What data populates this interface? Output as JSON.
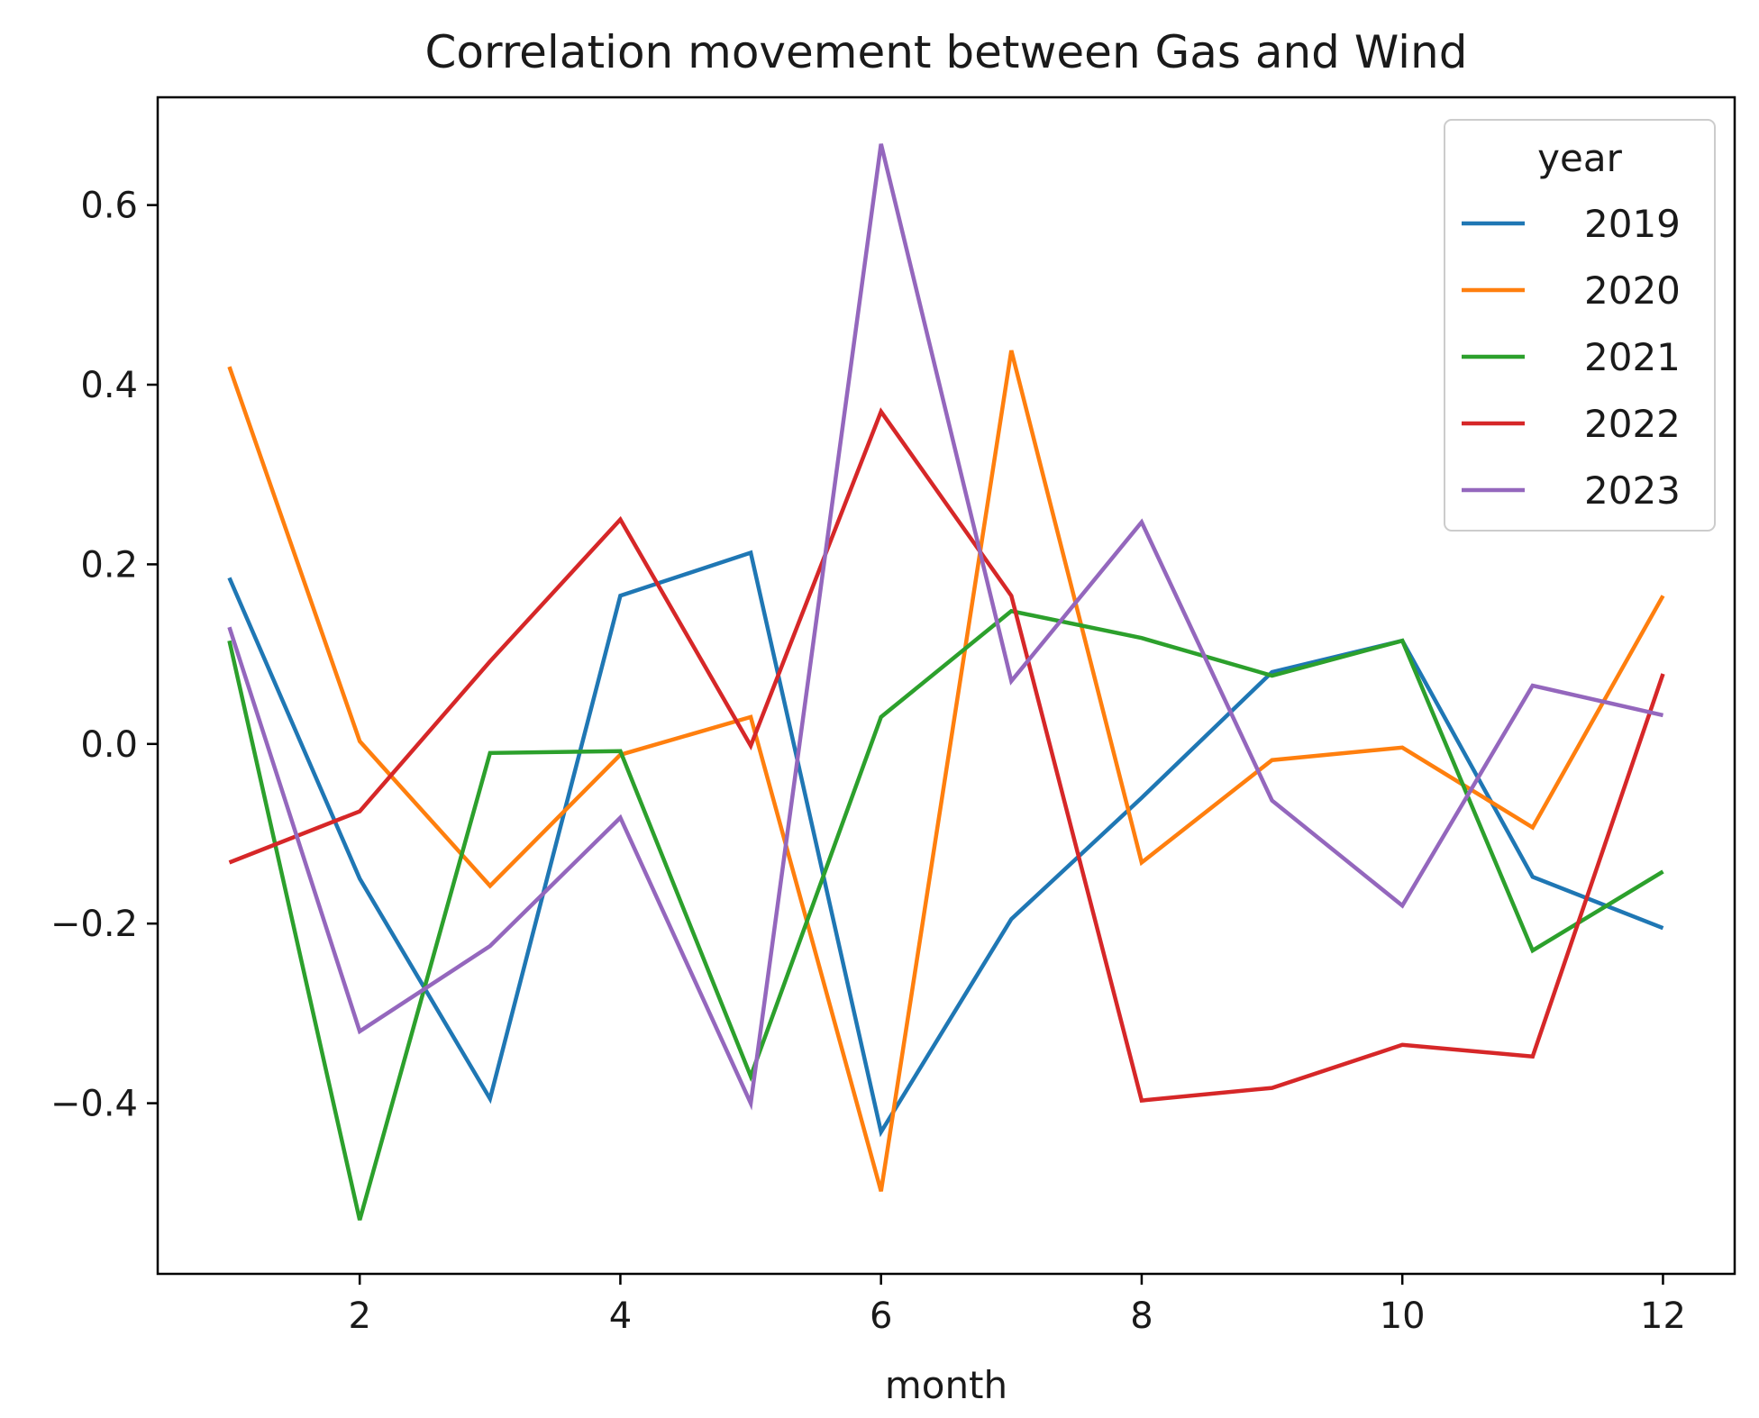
{
  "chart_data": {
    "type": "line",
    "title": "Correlation movement between Gas and Wind",
    "xlabel": "month",
    "ylabel": "",
    "x": [
      1,
      2,
      3,
      4,
      5,
      6,
      7,
      8,
      9,
      10,
      11,
      12
    ],
    "xlim": [
      0.45,
      12.55
    ],
    "ylim": [
      -0.59,
      0.72
    ],
    "xticks": [
      2,
      4,
      6,
      8,
      10,
      12
    ],
    "xtick_labels": [
      "2",
      "4",
      "6",
      "8",
      "10",
      "12"
    ],
    "yticks": [
      -0.4,
      -0.2,
      0.0,
      0.2,
      0.4,
      0.6
    ],
    "ytick_labels": [
      "−0.4",
      "−0.2",
      "0.0",
      "0.2",
      "0.4",
      "0.6"
    ],
    "grid": false,
    "legend": {
      "title": "year",
      "placement": "top-right"
    },
    "series": [
      {
        "name": "2019",
        "color": "#1f77b4",
        "values": [
          0.185,
          -0.15,
          -0.395,
          0.165,
          0.213,
          -0.432,
          -0.195,
          -0.06,
          0.08,
          0.115,
          -0.148,
          -0.205
        ]
      },
      {
        "name": "2020",
        "color": "#ff7f0e",
        "values": [
          0.42,
          0.003,
          -0.158,
          -0.012,
          0.03,
          -0.498,
          0.438,
          -0.132,
          -0.018,
          -0.004,
          -0.093,
          0.165
        ]
      },
      {
        "name": "2021",
        "color": "#2ca02c",
        "values": [
          0.115,
          -0.53,
          -0.01,
          -0.008,
          -0.37,
          0.03,
          0.148,
          0.118,
          0.076,
          0.115,
          -0.23,
          -0.142
        ]
      },
      {
        "name": "2022",
        "color": "#d62728",
        "values": [
          -0.132,
          -0.075,
          0.092,
          0.25,
          -0.002,
          0.37,
          0.165,
          -0.397,
          -0.383,
          -0.335,
          -0.348,
          0.078
        ]
      },
      {
        "name": "2023",
        "color": "#9467bd",
        "values": [
          0.13,
          -0.32,
          -0.225,
          -0.082,
          -0.4,
          0.668,
          0.07,
          0.247,
          -0.063,
          -0.18,
          0.065,
          0.032
        ]
      }
    ]
  }
}
